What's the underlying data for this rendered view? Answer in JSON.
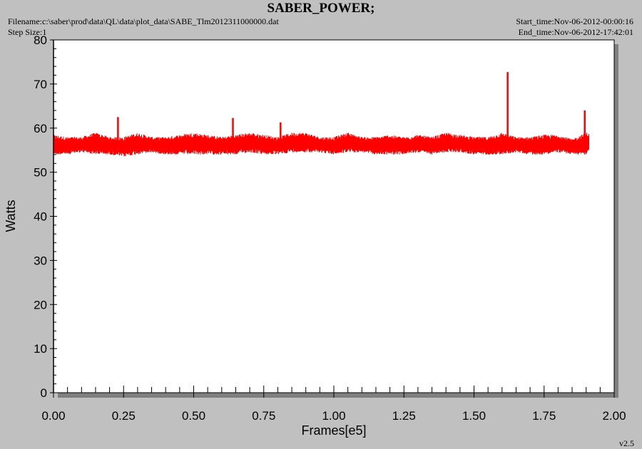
{
  "header": {
    "title": "SABER_POWER;",
    "filename": "Filename:c:\\saber\\prod\\data\\QL\\data\\plot_data\\SABE_Tlm2012311000000.dat",
    "step_size": "Step Size:1",
    "start_time": "Start_time:Nov-06-2012-00:00:16",
    "end_time": "End_time:Nov-06-2012-17:42:01",
    "version": "v2.5"
  },
  "colors": {
    "series": "#ff0000",
    "background": "#c0c0c0",
    "plot_bg": "#ffffff"
  },
  "chart_data": {
    "type": "line",
    "title": "SABER_POWER;",
    "xlabel": "Frames[e5]",
    "ylabel": "Watts",
    "xlim": [
      0.0,
      2.0
    ],
    "ylim": [
      0,
      80
    ],
    "xticks": [
      "0.00",
      "0.25",
      "0.50",
      "0.75",
      "1.00",
      "1.25",
      "1.50",
      "1.75",
      "2.00"
    ],
    "yticks": [
      "0",
      "10",
      "20",
      "30",
      "40",
      "50",
      "60",
      "70",
      "80"
    ],
    "grid": false,
    "series": [
      {
        "x": [
          0.0,
          0.05,
          0.1,
          0.15,
          0.2,
          0.25,
          0.3,
          0.35,
          0.4,
          0.45,
          0.5,
          0.55,
          0.6,
          0.65,
          0.7,
          0.75,
          0.8,
          0.85,
          0.9,
          0.95,
          1.0,
          1.05,
          1.1,
          1.15,
          1.2,
          1.25,
          1.3,
          1.35,
          1.4,
          1.45,
          1.5,
          1.55,
          1.6,
          1.65,
          1.7,
          1.75,
          1.8,
          1.85,
          1.9,
          1.91
        ],
        "y_min": [
          54.0,
          54.0,
          54.5,
          54.0,
          54.0,
          53.5,
          54.0,
          54.5,
          54.0,
          54.0,
          54.0,
          54.0,
          54.0,
          54.0,
          54.5,
          54.0,
          54.0,
          54.5,
          54.5,
          54.5,
          54.0,
          54.5,
          54.5,
          54.0,
          54.0,
          54.0,
          54.5,
          54.0,
          54.5,
          54.5,
          54.0,
          54.0,
          54.0,
          54.5,
          54.0,
          54.0,
          54.5,
          54.0,
          54.0,
          54.5
        ],
        "y_max": [
          58.5,
          58.0,
          58.0,
          59.0,
          58.0,
          58.0,
          59.0,
          58.0,
          58.0,
          58.5,
          59.0,
          58.5,
          58.0,
          58.5,
          59.0,
          58.5,
          58.0,
          59.0,
          59.0,
          58.0,
          58.0,
          59.0,
          58.0,
          58.0,
          58.5,
          58.0,
          58.5,
          58.0,
          59.0,
          58.5,
          58.0,
          58.0,
          59.0,
          58.0,
          58.0,
          58.5,
          58.5,
          57.5,
          59.0,
          59.0
        ],
        "spikes": [
          {
            "x": 0.23,
            "y": 62.5
          },
          {
            "x": 0.64,
            "y": 62.3
          },
          {
            "x": 0.81,
            "y": 61.3
          },
          {
            "x": 1.62,
            "y": 72.7
          },
          {
            "x": 1.895,
            "y": 64.0
          }
        ]
      }
    ]
  }
}
